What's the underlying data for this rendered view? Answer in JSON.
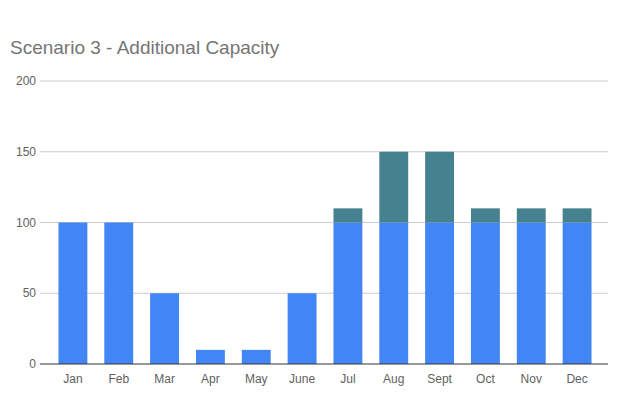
{
  "chart_data": {
    "type": "bar",
    "title": "Scenario 3 - Additional Capacity",
    "categories": [
      "Jan",
      "Feb",
      "Mar",
      "Apr",
      "May",
      "June",
      "Jul",
      "Aug",
      "Sept",
      "Oct",
      "Nov",
      "Dec"
    ],
    "series": [
      {
        "color": "#4285f4",
        "values": [
          100,
          100,
          50,
          10,
          10,
          50,
          100,
          100,
          100,
          100,
          100,
          100
        ]
      },
      {
        "color": "#45818e",
        "values": [
          0,
          0,
          0,
          0,
          0,
          0,
          10,
          50,
          50,
          10,
          10,
          10
        ]
      }
    ],
    "stacked": true,
    "ylim": [
      0,
      200
    ],
    "yticks": [
      0,
      50,
      100,
      150,
      200
    ],
    "grid": true
  }
}
